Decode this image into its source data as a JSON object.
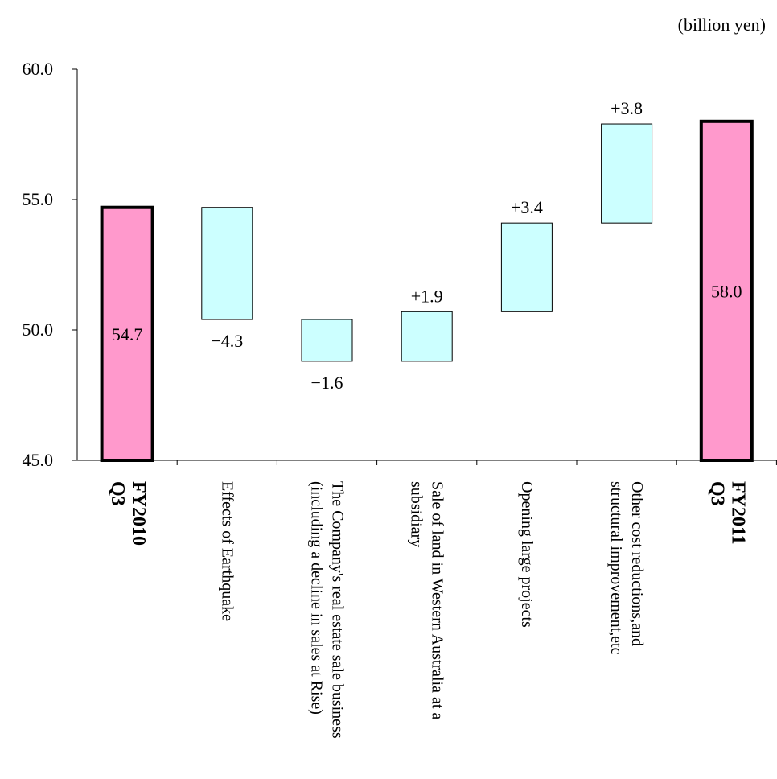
{
  "unit_label": "(billion yen)",
  "chart_data": {
    "type": "waterfall",
    "unit": "(billion yen)",
    "ylim": [
      45.0,
      60.0
    ],
    "yticks": [
      "45.0",
      "50.0",
      "55.0",
      "60.0"
    ],
    "ytick_values": [
      45,
      50,
      55,
      60
    ],
    "grid": false,
    "legend": "none",
    "colors": {
      "total": "#ff99cc",
      "change": "#ccffff",
      "outline": "#000000"
    },
    "steps": [
      {
        "kind": "total",
        "label_lines": [
          "FY2010",
          "Q3"
        ],
        "bold": true,
        "start": 45.0,
        "end": 54.7,
        "value": 54.7,
        "data_label": "54.7"
      },
      {
        "kind": "change",
        "label_lines": [
          "Effects of Earthquake"
        ],
        "bold": false,
        "start": 54.7,
        "end": 50.4,
        "value": -4.3,
        "data_label": "−4.3"
      },
      {
        "kind": "change",
        "label_lines": [
          "The Company's real estate sale business",
          "(including a decline in sales at Rise)"
        ],
        "bold": false,
        "start": 50.4,
        "end": 48.8,
        "value": -1.6,
        "data_label": "−1.6"
      },
      {
        "kind": "change",
        "label_lines": [
          "Sale of land in Western Australia at a",
          "subsidiary"
        ],
        "bold": false,
        "start": 48.8,
        "end": 50.7,
        "value": 1.9,
        "data_label": "+1.9"
      },
      {
        "kind": "change",
        "label_lines": [
          "Opening large projects"
        ],
        "bold": false,
        "start": 50.7,
        "end": 54.1,
        "value": 3.4,
        "data_label": "+3.4"
      },
      {
        "kind": "change",
        "label_lines": [
          "Other cost reductions,and",
          "structural improvement,etc"
        ],
        "bold": false,
        "start": 54.1,
        "end": 57.9,
        "value": 3.8,
        "data_label": "+3.8"
      },
      {
        "kind": "total",
        "label_lines": [
          "FY2011",
          "Q3"
        ],
        "bold": true,
        "start": 45.0,
        "end": 58.0,
        "value": 58.0,
        "data_label": "58.0"
      }
    ]
  }
}
